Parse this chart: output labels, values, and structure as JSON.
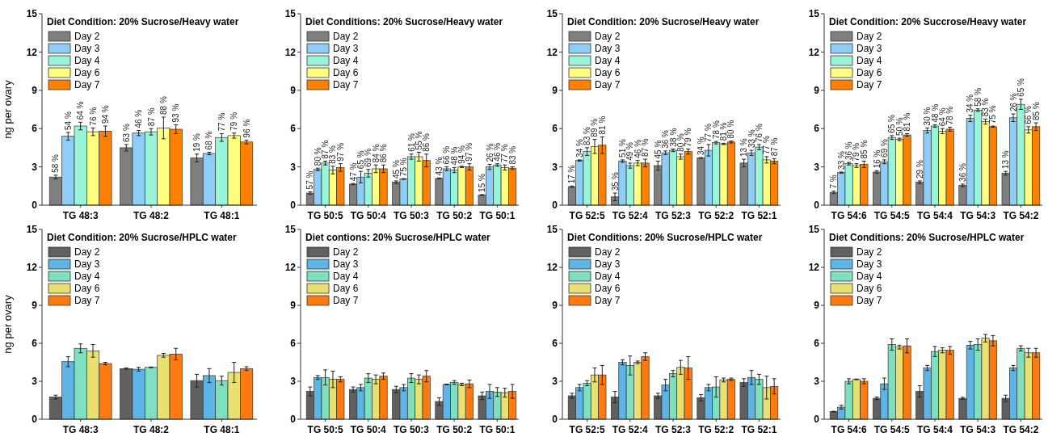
{
  "chart_data": [
    {
      "type": "bar",
      "title": "Diet Condition: 20% Sucrose/Heavy water",
      "ylabel": "ng per ovary",
      "categories": [
        "TG 48:3",
        "TG 48:2",
        "TG 48:1"
      ],
      "ylim": [
        0,
        15
      ],
      "yticks": [
        0,
        3,
        6,
        9,
        12,
        15
      ],
      "legend": "top left",
      "series": [
        {
          "name": "Day 2",
          "color": "#7f7f7f",
          "values": [
            2.2,
            4.5,
            3.7
          ],
          "errors": [
            0.15,
            0.25,
            0.3
          ]
        },
        {
          "name": "Day 3",
          "color": "#8ecdf5",
          "values": [
            5.4,
            5.65,
            4.05
          ],
          "errors": [
            0.3,
            0.2,
            0.1
          ]
        },
        {
          "name": "Day 4",
          "color": "#99f5d8",
          "values": [
            6.2,
            5.75,
            5.3
          ],
          "errors": [
            0.3,
            0.25,
            0.3
          ]
        },
        {
          "name": "Day 6",
          "color": "#ffff80",
          "values": [
            5.75,
            6.05,
            5.45
          ],
          "errors": [
            0.3,
            0.85,
            0.2
          ]
        },
        {
          "name": "Day 7",
          "color": "#ff8000",
          "values": [
            5.8,
            5.95,
            4.95
          ],
          "errors": [
            0.4,
            0.35,
            0.15
          ]
        }
      ],
      "annotations": [
        "58 %",
        "63 %",
        "19 %",
        "54 %",
        "46 %",
        "68 %",
        "64 %",
        "87 %",
        "77 %",
        "76 %",
        "88 %",
        "79 %",
        "94 %",
        "93 %",
        "96 %"
      ]
    },
    {
      "type": "bar",
      "title": "Diet Conditions: 20% Sucrose/Heavy water",
      "categories": [
        "TG 50:5",
        "TG 50:4",
        "TG 50:3",
        "TG 50:2",
        "TG 50:1"
      ],
      "ylim": [
        0,
        15
      ],
      "yticks": [
        0,
        3,
        6,
        9,
        12,
        15
      ],
      "legend": "top left",
      "series": [
        {
          "name": "Day 2",
          "color": "#7f7f7f",
          "values": [
            0.95,
            1.65,
            1.8,
            2.1,
            0.8
          ],
          "errors": [
            0.1,
            0.05,
            0.1,
            0.03,
            0.03
          ]
        },
        {
          "name": "Day 3",
          "color": "#8ecdf5",
          "values": [
            2.8,
            2.2,
            2.05,
            2.85,
            3.0
          ],
          "errors": [
            0.1,
            0.45,
            0.03,
            0.15,
            0.2
          ]
        },
        {
          "name": "Day 4",
          "color": "#99f5d8",
          "values": [
            3.3,
            2.5,
            3.8,
            2.75,
            3.15
          ],
          "errors": [
            0.15,
            0.3,
            0.2,
            0.2,
            0.1
          ]
        },
        {
          "name": "Day 6",
          "color": "#ffff80",
          "values": [
            2.75,
            2.85,
            3.8,
            3.0,
            2.95
          ],
          "errors": [
            0.3,
            0.3,
            0.35,
            0.05,
            0.2
          ]
        },
        {
          "name": "Day 7",
          "color": "#ff8000",
          "values": [
            2.95,
            2.85,
            3.5,
            3.0,
            2.9
          ],
          "errors": [
            0.3,
            0.3,
            0.5,
            0.25,
            0.1
          ]
        }
      ],
      "annotations": [
        "57 %",
        "47 %",
        "45 %",
        "43 %",
        "15 %",
        "80 %",
        "65 %",
        "75 %",
        "66 %",
        "26 %",
        "87 %",
        "69 %",
        "61 %",
        "48 %",
        "46 %",
        "83 %",
        "84 %",
        "55 %",
        "94 %",
        "77 %",
        "97 %",
        "86 %",
        "86 %",
        "97 %",
        "83 %"
      ]
    },
    {
      "type": "bar",
      "title": "Diet Condition: 20% Sucrose/Heavy water",
      "categories": [
        "TG 52:5",
        "TG 52:4",
        "TG 52:3",
        "TG 52:2",
        "TG 52:1"
      ],
      "ylim": [
        0,
        15
      ],
      "yticks": [
        0,
        3,
        6,
        9,
        12,
        15
      ],
      "legend": "top left",
      "series": [
        {
          "name": "Day 2",
          "color": "#7f7f7f",
          "values": [
            1.45,
            0.65,
            3.1,
            3.7,
            3.3
          ],
          "errors": [
            0.05,
            0.3,
            0.35,
            0.03,
            0.3
          ]
        },
        {
          "name": "Day 3",
          "color": "#8ecdf5",
          "values": [
            3.5,
            3.45,
            4.1,
            4.3,
            4.1
          ],
          "errors": [
            0.05,
            0.1,
            0.15,
            0.45,
            0.2
          ]
        },
        {
          "name": "Day 4",
          "color": "#99f5d8",
          "values": [
            4.2,
            3.1,
            4.3,
            4.9,
            4.55
          ],
          "errors": [
            0.3,
            0.2,
            0.1,
            0.1,
            0.2
          ]
        },
        {
          "name": "Day 6",
          "color": "#ffff80",
          "values": [
            4.6,
            3.3,
            3.8,
            4.8,
            3.55
          ],
          "errors": [
            0.55,
            0.2,
            0.2,
            0.05,
            0.25
          ]
        },
        {
          "name": "Day 7",
          "color": "#ff8000",
          "values": [
            4.7,
            3.3,
            4.2,
            4.95,
            3.45
          ],
          "errors": [
            0.65,
            0.3,
            0.2,
            0.08,
            0.2
          ]
        }
      ],
      "annotations": [
        "17 %",
        "35 %",
        "45 %",
        "34 %",
        "13 %",
        "34 %",
        "51 %",
        "36 %",
        "77 %",
        "33 %",
        "83 %",
        "49 %",
        "38 %",
        "78 %",
        "76 %",
        "89 %",
        "46 %",
        "80 %",
        "81 %",
        "77 %",
        "81 %",
        "87 %",
        "79 %",
        "80 %",
        "87 %"
      ]
    },
    {
      "type": "bar",
      "title": "Diet Condition: 20% Succrose/Heavy water",
      "categories": [
        "TG 54:6",
        "TG 54:5",
        "TG 54:4",
        "TG 54:3",
        "TG 54:2"
      ],
      "ylim": [
        0,
        15
      ],
      "yticks": [
        0,
        3,
        6,
        9,
        12,
        15
      ],
      "legend": "top left",
      "series": [
        {
          "name": "Day 2",
          "color": "#7f7f7f",
          "values": [
            1.0,
            2.6,
            1.8,
            1.55,
            2.5
          ],
          "errors": [
            0.1,
            0.1,
            0.1,
            0.1,
            0.15
          ]
        },
        {
          "name": "Day 3",
          "color": "#8ecdf5",
          "values": [
            2.55,
            3.4,
            5.85,
            6.8,
            6.85
          ],
          "errors": [
            0.05,
            0.15,
            0.2,
            0.25,
            0.3
          ]
        },
        {
          "name": "Day 4",
          "color": "#99f5d8",
          "values": [
            3.25,
            5.3,
            6.2,
            7.45,
            7.9
          ],
          "errors": [
            0.1,
            0.15,
            0.1,
            0.1,
            0.4
          ]
        },
        {
          "name": "Day 6",
          "color": "#ffff80",
          "values": [
            3.1,
            5.15,
            5.8,
            6.55,
            5.9
          ],
          "errors": [
            0.15,
            0.1,
            0.2,
            0.2,
            0.25
          ]
        },
        {
          "name": "Day 7",
          "color": "#ff8000",
          "values": [
            3.2,
            5.5,
            5.95,
            6.15,
            6.15
          ],
          "errors": [
            0.25,
            0.1,
            0.15,
            0.05,
            0.3
          ]
        }
      ],
      "annotations": [
        "7 %",
        "16 %",
        "29 %",
        "36 %",
        "13 %",
        "33 %",
        "69 %",
        "30 %",
        "34 %",
        "26 %",
        "36 %",
        "65 %",
        "48 %",
        "58 %",
        "65 %",
        "79 %",
        "50 %",
        "64 %",
        "83 %",
        "66 %",
        "85 %",
        "81 %",
        "78 %",
        "75 %",
        "85 %"
      ]
    },
    {
      "type": "bar",
      "title": "Diet Condition: 20% Sucrose/HPLC water",
      "ylabel": "ng per ovary",
      "categories": [
        "TG 48:3",
        "TG 48:2",
        "TG 48:1"
      ],
      "ylim": [
        0,
        15
      ],
      "yticks": [
        0,
        3,
        6,
        9,
        12,
        15
      ],
      "legend": "top left",
      "series": [
        {
          "name": "Day 2",
          "color": "#606060",
          "values": [
            1.75,
            4.0,
            3.05
          ],
          "errors": [
            0.15,
            0.05,
            0.5
          ]
        },
        {
          "name": "Day 3",
          "color": "#5fb4e6",
          "values": [
            4.55,
            3.95,
            3.45
          ],
          "errors": [
            0.4,
            0.15,
            0.55
          ]
        },
        {
          "name": "Day 4",
          "color": "#7fe0c0",
          "values": [
            5.6,
            4.1,
            3.05
          ],
          "errors": [
            0.35,
            0.03,
            0.35
          ]
        },
        {
          "name": "Day 6",
          "color": "#e8e070",
          "values": [
            5.4,
            5.05,
            3.7
          ],
          "errors": [
            0.5,
            0.15,
            0.8
          ]
        },
        {
          "name": "Day 7",
          "color": "#ff7a10",
          "values": [
            4.4,
            5.15,
            4.0
          ],
          "errors": [
            0.1,
            0.45,
            0.15
          ]
        }
      ]
    },
    {
      "type": "bar",
      "title": "Diet contions: 20% Sucrose/HPLC water",
      "categories": [
        "TG 50:5",
        "TG 50:4",
        "TG 50:3",
        "TG 50:2",
        "TG 50:1"
      ],
      "ylim": [
        0,
        15
      ],
      "yticks": [
        0,
        3,
        6,
        9,
        12,
        15
      ],
      "legend": "top left",
      "series": [
        {
          "name": "Day 2",
          "color": "#606060",
          "values": [
            2.2,
            2.35,
            2.35,
            1.4,
            1.85
          ],
          "errors": [
            0.35,
            0.2,
            0.25,
            0.3,
            0.3
          ]
        },
        {
          "name": "Day 3",
          "color": "#5fb4e6",
          "values": [
            3.3,
            2.5,
            2.5,
            2.75,
            2.2
          ],
          "errors": [
            0.15,
            0.25,
            0.25,
            0.03,
            0.55
          ]
        },
        {
          "name": "Day 4",
          "color": "#7fe0c0",
          "values": [
            3.3,
            3.25,
            3.25,
            2.9,
            2.15
          ],
          "errors": [
            0.6,
            0.35,
            0.35,
            0.15,
            0.35
          ]
        },
        {
          "name": "Day 6",
          "color": "#e8e070",
          "values": [
            3.15,
            3.15,
            3.15,
            2.75,
            2.1
          ],
          "errors": [
            0.65,
            0.35,
            0.35,
            0.1,
            0.35
          ]
        },
        {
          "name": "Day 7",
          "color": "#ff7a10",
          "values": [
            3.15,
            3.4,
            3.4,
            2.8,
            2.2
          ],
          "errors": [
            0.2,
            0.25,
            0.45,
            0.3,
            0.55
          ]
        }
      ]
    },
    {
      "type": "bar",
      "title": "Diet Conditions: 20% Sucrose/HPLC water",
      "categories": [
        "TG 52:5",
        "TG 52:4",
        "TG 52:3",
        "TG 52:2",
        "TG 52:1"
      ],
      "ylim": [
        0,
        15
      ],
      "yticks": [
        0,
        3,
        6,
        9,
        12,
        15
      ],
      "legend": "top left",
      "series": [
        {
          "name": "Day 2",
          "color": "#606060",
          "values": [
            1.85,
            1.75,
            1.85,
            1.7,
            2.9
          ],
          "errors": [
            0.2,
            0.45,
            0.2,
            0.25,
            0.3
          ]
        },
        {
          "name": "Day 3",
          "color": "#5fb4e6",
          "values": [
            2.5,
            4.5,
            2.7,
            2.5,
            3.3
          ],
          "errors": [
            0.25,
            0.2,
            0.45,
            0.25,
            0.55
          ]
        },
        {
          "name": "Day 4",
          "color": "#7fe0c0",
          "values": [
            2.85,
            4.25,
            3.6,
            2.55,
            3.15
          ],
          "errors": [
            0.2,
            0.75,
            0.25,
            0.8,
            0.4
          ]
        },
        {
          "name": "Day 6",
          "color": "#e8e070",
          "values": [
            3.5,
            4.5,
            4.1,
            3.1,
            2.5
          ],
          "errors": [
            0.55,
            0.1,
            0.55,
            0.15,
            0.9
          ]
        },
        {
          "name": "Day 7",
          "color": "#ff7a10",
          "values": [
            3.5,
            4.95,
            4.05,
            3.15,
            2.6
          ],
          "errors": [
            0.75,
            0.3,
            0.9,
            0.1,
            0.6
          ]
        }
      ]
    },
    {
      "type": "bar",
      "title": "Diet Conditions: 20% Sucrose/HPLC water",
      "categories": [
        "TG 54:6",
        "TG 54:5",
        "TG 54:4",
        "TG 54:3",
        "TG 54:2"
      ],
      "ylim": [
        0,
        15
      ],
      "yticks": [
        0,
        3,
        6,
        9,
        12,
        15
      ],
      "legend": "top left",
      "series": [
        {
          "name": "Day 2",
          "color": "#606060",
          "values": [
            0.6,
            1.65,
            2.2,
            1.65,
            1.65
          ],
          "errors": [
            0.03,
            0.1,
            0.45,
            0.08,
            0.25
          ]
        },
        {
          "name": "Day 3",
          "color": "#5fb4e6",
          "values": [
            0.95,
            2.8,
            4.05,
            5.85,
            4.05
          ],
          "errors": [
            0.15,
            0.45,
            0.2,
            0.3,
            0.2
          ]
        },
        {
          "name": "Day 4",
          "color": "#7fe0c0",
          "values": [
            3.0,
            5.9,
            5.35,
            5.9,
            5.6
          ],
          "errors": [
            0.2,
            0.45,
            0.4,
            0.45,
            0.2
          ]
        },
        {
          "name": "Day 6",
          "color": "#e8e070",
          "values": [
            3.15,
            5.7,
            5.45,
            6.4,
            5.25
          ],
          "errors": [
            0.03,
            0.15,
            0.2,
            0.3,
            0.35
          ]
        },
        {
          "name": "Day 7",
          "color": "#ff7a10",
          "values": [
            3.0,
            5.8,
            5.45,
            6.2,
            5.25
          ],
          "errors": [
            0.2,
            0.55,
            0.3,
            0.4,
            0.35
          ]
        }
      ]
    }
  ]
}
